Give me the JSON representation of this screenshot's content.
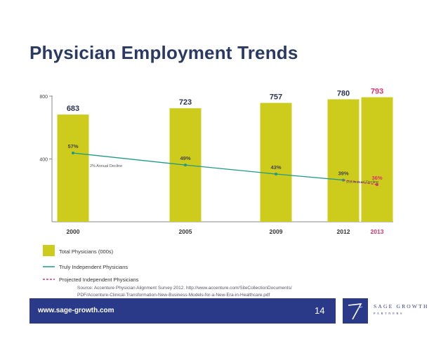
{
  "slide": {
    "title": "Physician Employment Trends",
    "source_line1": "Source: Accenture Physician Alignment Survey 2012. http://www.accenture.com/SiteCollectionDocuments/",
    "source_line2": "PDF/Accenture-Clinical-Transformation-New-Business-Models-for-a-New-Era-in-Healthcare.pdf",
    "footer_url": "www.sage-growth.com",
    "page_number": "14",
    "logo_line1": "SAGE GROWTH",
    "logo_line2": "PARTNERS"
  },
  "colors": {
    "bar": "#cdcc1d",
    "bar_label": "#2b3350",
    "projected_bar_label": "#d7336f",
    "line": "#1f9a86",
    "projected_line": "#d7336f",
    "title": "#2a3a62",
    "footer": "#2b3a88"
  },
  "chart_data": {
    "type": "bar",
    "categories": [
      "2000",
      "2005",
      "2009",
      "2012",
      "2013"
    ],
    "projected_categories": [
      "2013"
    ],
    "series": [
      {
        "name": "Total Physicians (000s)",
        "values": [
          683,
          723,
          757,
          780,
          793
        ],
        "value_labels": [
          "683",
          "723",
          "757",
          "780",
          "793"
        ]
      },
      {
        "name": "Truly Independent Physicians",
        "type": "line",
        "values": [
          57,
          49,
          43,
          39,
          null
        ],
        "value_labels": [
          "57%",
          "49%",
          "43%",
          "39%",
          null
        ]
      },
      {
        "name": "Projected Independent Physicians",
        "type": "line",
        "values": [
          null,
          null,
          null,
          39,
          36
        ],
        "value_labels": [
          null,
          null,
          null,
          null,
          "36%"
        ]
      }
    ],
    "annotations": [
      "2% Annual Decline",
      "5% Annual Decline"
    ],
    "y_ticks": [
      "800",
      "400"
    ],
    "ylim": [
      0,
      800
    ],
    "legend": [
      {
        "label": "Total Physicians (000s)",
        "symbol": "box"
      },
      {
        "label": "Truly Independent Physicians",
        "symbol": "line"
      },
      {
        "label": "Projected Independent Physicians",
        "symbol": "dashed"
      }
    ],
    "legend_position": "bottom-left"
  }
}
